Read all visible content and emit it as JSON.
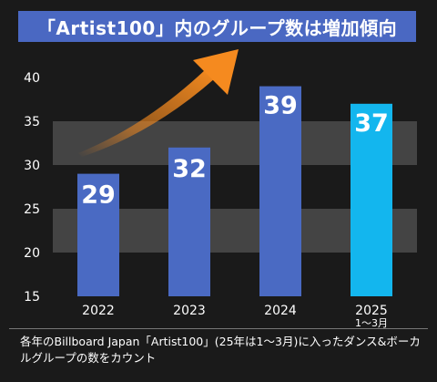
{
  "title": "「Artist100」内のグループ数は増加傾向",
  "footnote": "各年のBillboard Japan「Artist100」(25年は1〜3月)に入ったダンス&ボーカルグループの数をカウント",
  "colors": {
    "bar": "#4a6ac3",
    "bar_highlight": "#13b6ee",
    "band_light": "#444444",
    "band_dark": "#1a1a1a",
    "arrow": "#f58a1f",
    "title_bg": "#4a68c2"
  },
  "chart_data": {
    "type": "bar",
    "categories": [
      [
        "2022"
      ],
      [
        "2023"
      ],
      [
        "2024"
      ],
      [
        "2025",
        "1〜3月"
      ]
    ],
    "values": [
      29,
      32,
      39,
      37
    ],
    "data_labels": [
      "29",
      "32",
      "39",
      "37"
    ],
    "highlight_index": 3,
    "ylim": [
      15,
      40
    ],
    "yticks": [
      "15",
      "20",
      "25",
      "30",
      "35",
      "40"
    ],
    "ytick_values": [
      15,
      20,
      25,
      30,
      35,
      40
    ],
    "grid": "alternating bands",
    "annotation": "upward-arrow"
  }
}
